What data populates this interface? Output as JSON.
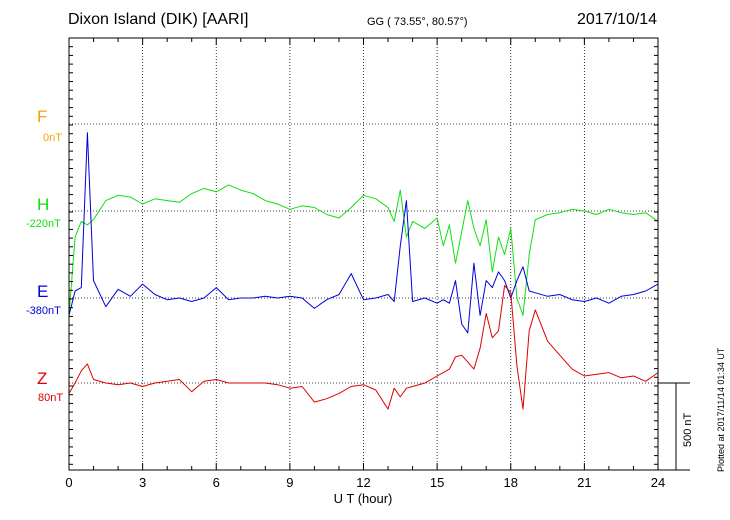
{
  "header": {
    "station": "Dixon Island (DIK)  [AARI]",
    "coords": "GG ( 73.55°,  80.57°)",
    "date": "2017/10/14"
  },
  "components": [
    {
      "name": "F",
      "baseline": "0nT",
      "color": "#f5a300"
    },
    {
      "name": "H",
      "baseline": "-220nT",
      "color": "#10e010"
    },
    {
      "name": "E",
      "baseline": "-380nT",
      "color": "#0000dd"
    },
    {
      "name": "Z",
      "baseline": "80nT",
      "color": "#dd0000"
    }
  ],
  "footer": {
    "scale_label": "500 nT",
    "plotted": "Plotted at 2017/11/14 01:34 UT"
  },
  "chart_data": {
    "type": "line",
    "xlabel": "U T (hour)",
    "xlim": [
      0,
      24
    ],
    "xticks": [
      "0",
      "3",
      "6",
      "9",
      "12",
      "15",
      "18",
      "21",
      "24"
    ],
    "scale_bar_nT": 500,
    "grid": true,
    "series": [
      {
        "name": "H",
        "baseline_nT": -220,
        "x": [
          0,
          0.25,
          0.5,
          0.75,
          1,
          1.5,
          2,
          2.5,
          3,
          3.5,
          4,
          4.5,
          5,
          5.5,
          6,
          6.5,
          7,
          7.5,
          8,
          8.5,
          9,
          9.5,
          10,
          10.5,
          11,
          11.5,
          12,
          12.5,
          13,
          13.25,
          13.5,
          13.75,
          14,
          14.5,
          15,
          15.25,
          15.5,
          15.75,
          16,
          16.25,
          16.5,
          16.75,
          17,
          17.25,
          17.5,
          17.75,
          18,
          18.25,
          18.5,
          18.75,
          19,
          19.5,
          20,
          20.5,
          21,
          21.5,
          22,
          22.5,
          23,
          23.5,
          24
        ],
        "values": [
          -600,
          -150,
          -60,
          -80,
          -50,
          60,
          90,
          80,
          40,
          70,
          60,
          50,
          100,
          130,
          110,
          150,
          120,
          100,
          60,
          40,
          10,
          30,
          20,
          -20,
          -40,
          20,
          90,
          70,
          20,
          -60,
          120,
          -150,
          -60,
          -100,
          -40,
          -200,
          -80,
          -300,
          -120,
          60,
          -100,
          -200,
          -50,
          -350,
          -150,
          -250,
          -100,
          -500,
          -600,
          -250,
          -50,
          -20,
          -10,
          10,
          0,
          -20,
          10,
          -10,
          -20,
          -10,
          -60
        ]
      },
      {
        "name": "E",
        "baseline_nT": -380,
        "x": [
          0,
          0.25,
          0.5,
          0.75,
          1,
          1.5,
          2,
          2.5,
          3,
          3.5,
          4,
          4.5,
          5,
          5.5,
          6,
          6.5,
          7,
          7.5,
          8,
          8.5,
          9,
          9.5,
          10,
          10.5,
          11,
          11.5,
          12,
          12.5,
          13,
          13.25,
          13.5,
          13.75,
          14,
          14.5,
          15,
          15.25,
          15.5,
          15.75,
          16,
          16.25,
          16.5,
          16.75,
          17,
          17.25,
          17.5,
          17.75,
          18,
          18.25,
          18.5,
          18.75,
          19,
          19.5,
          20,
          20.5,
          21,
          21.5,
          22,
          22.5,
          23,
          23.5,
          24
        ],
        "values": [
          -100,
          40,
          60,
          950,
          100,
          -50,
          50,
          10,
          80,
          20,
          -10,
          0,
          -20,
          0,
          60,
          -10,
          0,
          0,
          10,
          0,
          10,
          0,
          -60,
          -10,
          20,
          140,
          -10,
          0,
          20,
          -20,
          300,
          560,
          -20,
          0,
          -30,
          -10,
          -30,
          100,
          -150,
          -200,
          200,
          -100,
          100,
          60,
          150,
          100,
          0,
          100,
          180,
          40,
          30,
          10,
          20,
          -10,
          -20,
          0,
          -30,
          10,
          20,
          40,
          80
        ]
      },
      {
        "name": "Z",
        "baseline_nT": 80,
        "x": [
          0,
          0.25,
          0.5,
          0.75,
          1,
          1.5,
          2,
          2.5,
          3,
          3.5,
          4,
          4.5,
          5,
          5.5,
          6,
          6.5,
          7,
          7.5,
          8,
          8.5,
          9,
          9.5,
          10,
          10.5,
          11,
          11.5,
          12,
          12.5,
          13,
          13.25,
          13.5,
          13.75,
          14,
          14.5,
          15,
          15.25,
          15.5,
          15.75,
          16,
          16.25,
          16.5,
          16.75,
          17,
          17.25,
          17.5,
          17.75,
          18,
          18.25,
          18.5,
          18.75,
          19,
          19.5,
          20,
          20.5,
          21,
          21.5,
          22,
          22.5,
          23,
          23.5,
          24
        ],
        "values": [
          -60,
          0,
          70,
          110,
          20,
          0,
          -10,
          0,
          -20,
          0,
          10,
          20,
          -50,
          10,
          20,
          0,
          0,
          0,
          0,
          -10,
          -30,
          -20,
          -110,
          -90,
          -60,
          -20,
          -10,
          -40,
          -150,
          -30,
          -80,
          -30,
          -20,
          0,
          40,
          60,
          80,
          150,
          160,
          120,
          80,
          200,
          400,
          260,
          300,
          560,
          520,
          100,
          -150,
          300,
          420,
          240,
          160,
          80,
          40,
          50,
          60,
          30,
          40,
          10,
          60
        ]
      }
    ]
  }
}
